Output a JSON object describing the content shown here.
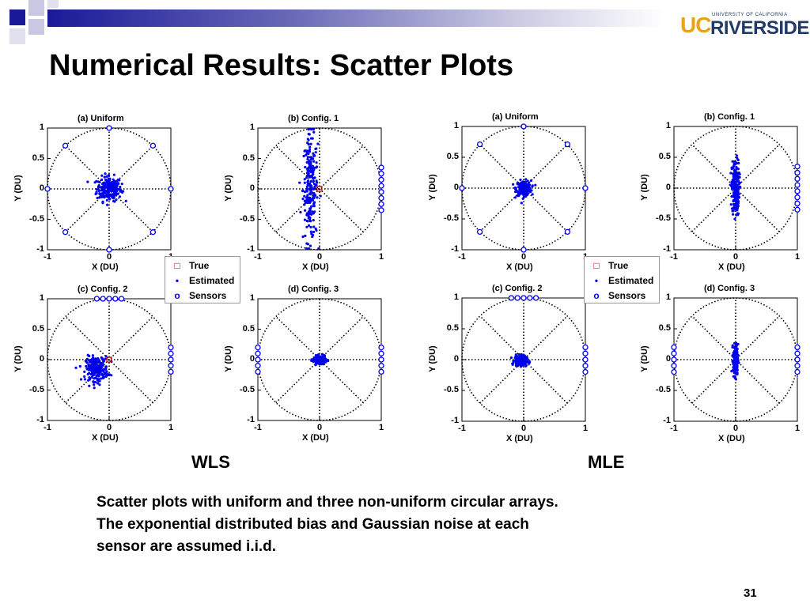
{
  "slide": {
    "title": "Numerical Results: Scatter Plots",
    "logo": {
      "uc": "UC",
      "riverside": "RIVERSIDE",
      "small": "UNIVERSITY OF CALIFORNIA"
    },
    "wls_label": "WLS",
    "mle_label": "MLE",
    "caption_lines": [
      "Scatter plots with uniform and three non-uniform circular arrays.",
      "The exponential distributed bias and Gaussian noise at each",
      "sensor are assumed i.i.d."
    ],
    "page_number": "31"
  },
  "legend": {
    "true": "True",
    "estimated": "Estimated",
    "sensors": "Sensors"
  },
  "colors": {
    "estimated": "#0000ee",
    "sensor": "#0000ee",
    "true": "#cc0000",
    "circle": "#000000"
  },
  "chart_data": [
    {
      "type": "scatter",
      "panel": "WLS",
      "title": "(a) Uniform",
      "xlabel": "X (DU)",
      "ylabel": "Y (DU)",
      "xlim": [
        -1,
        1
      ],
      "ylim": [
        -1,
        1
      ],
      "yticks": [
        "1",
        "0.5",
        "0",
        "-0.5",
        "-1"
      ],
      "xticks": [
        "-1",
        "0",
        "1"
      ],
      "sensors": [
        [
          1,
          0
        ],
        [
          0.71,
          0.71
        ],
        [
          0,
          1
        ],
        [
          -0.71,
          0.71
        ],
        [
          -1,
          0
        ],
        [
          -0.71,
          -0.71
        ],
        [
          0,
          -1
        ],
        [
          0.71,
          -0.71
        ]
      ],
      "estimated_cluster": {
        "center": [
          0,
          0
        ],
        "spread": [
          0.2,
          0.2
        ]
      }
    },
    {
      "type": "scatter",
      "panel": "WLS",
      "title": "(b) Config. 1",
      "xlabel": "X (DU)",
      "ylabel": "Y (DU)",
      "xlim": [
        -1,
        1
      ],
      "ylim": [
        -1,
        1
      ],
      "yticks": [
        "1",
        "0.5",
        "0",
        "-0.5",
        "-1"
      ],
      "xticks": [
        "-1",
        "0",
        "1"
      ],
      "sensors": [
        [
          1,
          0.35
        ],
        [
          1,
          0.25
        ],
        [
          1,
          0.15
        ],
        [
          1,
          0.05
        ],
        [
          1,
          -0.05
        ],
        [
          1,
          -0.15
        ],
        [
          1,
          -0.25
        ],
        [
          1,
          -0.35
        ]
      ],
      "true": [
        0,
        0
      ],
      "estimated_cluster": {
        "center": [
          -0.15,
          0
        ],
        "spread": [
          0.12,
          0.85
        ]
      }
    },
    {
      "type": "scatter",
      "panel": "MLE",
      "title": "(a) Uniform",
      "xlabel": "X (DU)",
      "ylabel": "Y (DU)",
      "xlim": [
        -1,
        1
      ],
      "ylim": [
        -1,
        1
      ],
      "yticks": [
        "1",
        "0.5",
        "0",
        "-0.5",
        "-1"
      ],
      "xticks": [
        "-1",
        "0",
        "1"
      ],
      "sensors": [
        [
          1,
          0
        ],
        [
          0.71,
          0.71
        ],
        [
          0,
          1
        ],
        [
          -0.71,
          0.71
        ],
        [
          -1,
          0
        ],
        [
          -0.71,
          -0.71
        ],
        [
          0,
          -1
        ],
        [
          0.71,
          -0.71
        ]
      ],
      "estimated_cluster": {
        "center": [
          0,
          0
        ],
        "spread": [
          0.12,
          0.12
        ]
      }
    },
    {
      "type": "scatter",
      "panel": "MLE",
      "title": "(b) Config. 1",
      "xlabel": "X (DU)",
      "ylabel": "Y (DU)",
      "xlim": [
        -1,
        1
      ],
      "ylim": [
        -1,
        1
      ],
      "yticks": [
        "1",
        "0.5",
        "0",
        "-0.5",
        "-1"
      ],
      "xticks": [
        "-1",
        "0",
        "1"
      ],
      "sensors": [
        [
          1,
          0.35
        ],
        [
          1,
          0.25
        ],
        [
          1,
          0.15
        ],
        [
          1,
          0.05
        ],
        [
          1,
          -0.05
        ],
        [
          1,
          -0.15
        ],
        [
          1,
          -0.25
        ],
        [
          1,
          -0.35
        ]
      ],
      "estimated_cluster": {
        "center": [
          0,
          0
        ],
        "spread": [
          0.06,
          0.45
        ]
      }
    },
    {
      "type": "scatter",
      "panel": "WLS",
      "title": "(c) Config. 2",
      "xlabel": "X (DU)",
      "ylabel": "Y (DU)",
      "xlim": [
        -1,
        1
      ],
      "ylim": [
        -1,
        1
      ],
      "yticks": [
        "1",
        "0.5",
        "0",
        "-0.5",
        "-1"
      ],
      "xticks": [
        "-1",
        "0",
        "1"
      ],
      "sensors": [
        [
          -0.2,
          1
        ],
        [
          -0.1,
          1
        ],
        [
          0,
          1
        ],
        [
          0.1,
          1
        ],
        [
          0.2,
          1
        ],
        [
          1,
          0.2
        ],
        [
          1,
          0.1
        ],
        [
          1,
          0
        ],
        [
          1,
          -0.1
        ],
        [
          1,
          -0.2
        ]
      ],
      "true": [
        0,
        0
      ],
      "estimated_cluster": {
        "center": [
          -0.2,
          -0.15
        ],
        "spread": [
          0.18,
          0.2
        ]
      }
    },
    {
      "type": "scatter",
      "panel": "WLS",
      "title": "(d) Config. 3",
      "xlabel": "X (DU)",
      "ylabel": "Y (DU)",
      "xlim": [
        -1,
        1
      ],
      "ylim": [
        -1,
        1
      ],
      "yticks": [
        "1",
        "0.5",
        "0",
        "-0.5",
        "-1"
      ],
      "xticks": [
        "-1",
        "0",
        "1"
      ],
      "sensors": [
        [
          -1,
          0.2
        ],
        [
          -1,
          0.1
        ],
        [
          -1,
          0
        ],
        [
          -1,
          -0.1
        ],
        [
          -1,
          -0.2
        ],
        [
          1,
          0.2
        ],
        [
          1,
          0.1
        ],
        [
          1,
          0
        ],
        [
          1,
          -0.1
        ],
        [
          1,
          -0.2
        ]
      ],
      "estimated_cluster": {
        "center": [
          0,
          0
        ],
        "spread": [
          0.1,
          0.06
        ]
      }
    },
    {
      "type": "scatter",
      "panel": "MLE",
      "title": "(c) Config. 2",
      "xlabel": "X (DU)",
      "ylabel": "Y (DU)",
      "xlim": [
        -1,
        1
      ],
      "ylim": [
        -1,
        1
      ],
      "yticks": [
        "1",
        "0.5",
        "0",
        "-0.5",
        "-1"
      ],
      "xticks": [
        "-1",
        "0",
        "1"
      ],
      "sensors": [
        [
          -0.2,
          1
        ],
        [
          -0.1,
          1
        ],
        [
          0,
          1
        ],
        [
          0.1,
          1
        ],
        [
          0.2,
          1
        ],
        [
          1,
          0.2
        ],
        [
          1,
          0.1
        ],
        [
          1,
          0
        ],
        [
          1,
          -0.1
        ],
        [
          1,
          -0.2
        ]
      ],
      "estimated_cluster": {
        "center": [
          -0.05,
          -0.02
        ],
        "spread": [
          0.1,
          0.08
        ]
      }
    },
    {
      "type": "scatter",
      "panel": "MLE",
      "title": "(d) Config. 3",
      "xlabel": "X (DU)",
      "ylabel": "Y (DU)",
      "xlim": [
        -1,
        1
      ],
      "ylim": [
        -1,
        1
      ],
      "yticks": [
        "1",
        "0.5",
        "0",
        "-0.5",
        "-1"
      ],
      "xticks": [
        "-1",
        "0",
        "1"
      ],
      "sensors": [
        [
          -1,
          0.2
        ],
        [
          -1,
          0.1
        ],
        [
          -1,
          0
        ],
        [
          -1,
          -0.1
        ],
        [
          -1,
          -0.2
        ],
        [
          1,
          0.2
        ],
        [
          1,
          0.1
        ],
        [
          1,
          0
        ],
        [
          1,
          -0.1
        ],
        [
          1,
          -0.2
        ]
      ],
      "estimated_cluster": {
        "center": [
          0,
          0
        ],
        "spread": [
          0.04,
          0.25
        ]
      }
    }
  ]
}
